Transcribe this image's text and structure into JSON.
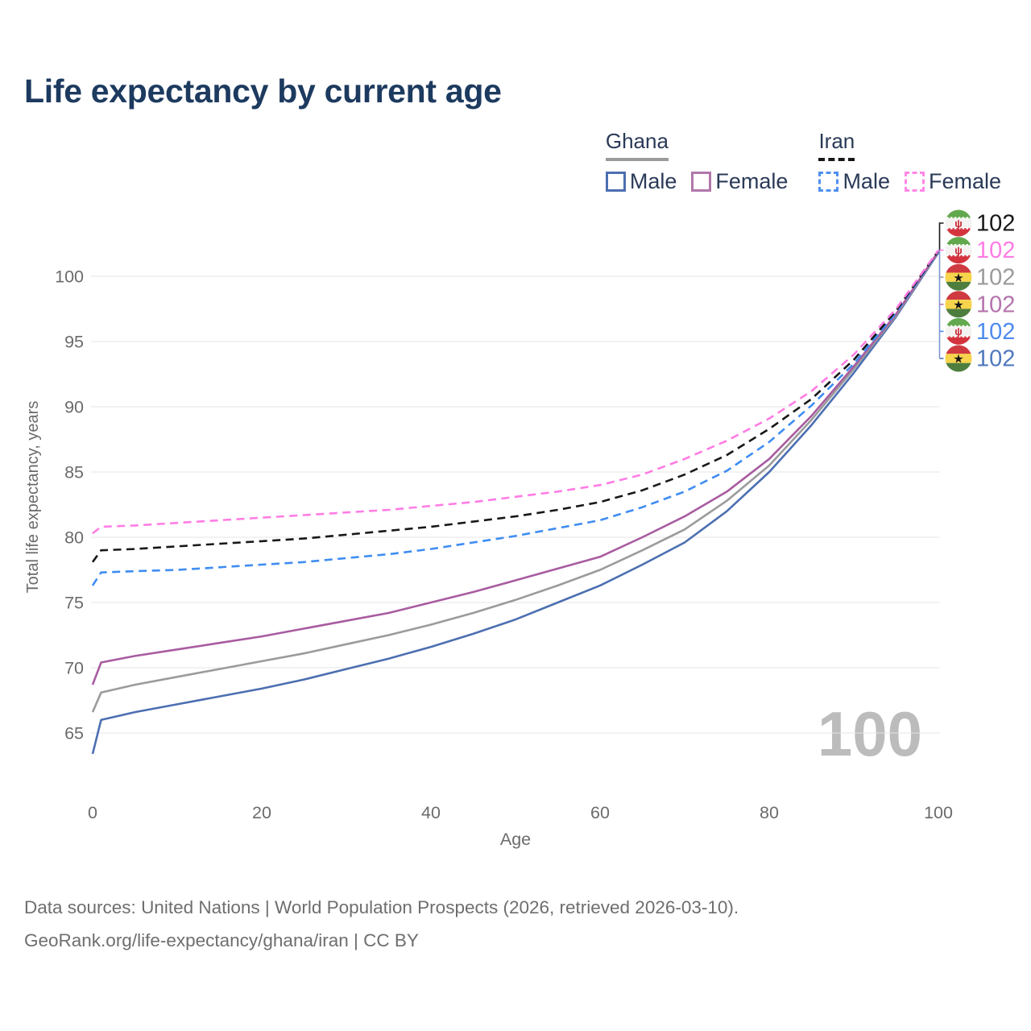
{
  "header": {
    "title": "Life expectancy by current age"
  },
  "legend": {
    "groups": [
      {
        "name": "Ghana",
        "line_style": "solid",
        "line_color": "#9b9b9b",
        "items": [
          {
            "label": "Male",
            "color": "#4c6fb1",
            "dashed": false
          },
          {
            "label": "Female",
            "color": "#b077ab",
            "dashed": false
          }
        ]
      },
      {
        "name": "Iran",
        "line_style": "dashed",
        "line_color": "#181818",
        "items": [
          {
            "label": "Male",
            "color": "#4f90f0",
            "dashed": true
          },
          {
            "label": "Female",
            "color": "#ff87e6",
            "dashed": true
          }
        ]
      }
    ]
  },
  "chart_data": {
    "type": "line",
    "title": "Life expectancy by current age",
    "xlabel": "Age",
    "ylabel": "Total life expectancy, years",
    "x_ticks": [
      0,
      20,
      40,
      60,
      80,
      100
    ],
    "y_ticks": [
      65,
      70,
      75,
      80,
      85,
      90,
      95,
      100
    ],
    "xlim": [
      0,
      100
    ],
    "ylim": [
      63,
      103
    ],
    "grid": "horizontal",
    "legend_position": "top-right",
    "watermark": "100",
    "ages": [
      0,
      1,
      5,
      10,
      15,
      20,
      25,
      30,
      35,
      40,
      45,
      50,
      55,
      60,
      65,
      70,
      75,
      80,
      85,
      90,
      95,
      100
    ],
    "series": [
      {
        "id": "ghana-male",
        "name": "Ghana Male",
        "country": "Ghana",
        "sex": "Male",
        "color": "#4c6fb1",
        "dashed": false,
        "values": [
          63.4,
          66.0,
          66.6,
          67.2,
          67.8,
          68.4,
          69.1,
          69.9,
          70.7,
          71.6,
          72.6,
          73.7,
          75.0,
          76.3,
          77.9,
          79.6,
          82.0,
          85.0,
          88.6,
          92.6,
          96.9,
          101.8
        ]
      },
      {
        "id": "ghana",
        "name": "Ghana",
        "country": "Ghana",
        "sex": "Both",
        "color": "#9b9b9b",
        "dashed": false,
        "values": [
          66.6,
          68.1,
          68.7,
          69.3,
          69.9,
          70.5,
          71.1,
          71.8,
          72.5,
          73.3,
          74.2,
          75.2,
          76.3,
          77.5,
          79.0,
          80.6,
          82.8,
          85.5,
          89.0,
          92.9,
          97.0,
          101.85
        ]
      },
      {
        "id": "ghana-female",
        "name": "Ghana Female",
        "country": "Ghana",
        "sex": "Female",
        "color": "#a85ca0",
        "dashed": false,
        "values": [
          68.7,
          70.4,
          70.9,
          71.4,
          71.9,
          72.4,
          73.0,
          73.6,
          74.2,
          75.0,
          75.8,
          76.7,
          77.6,
          78.5,
          80.0,
          81.6,
          83.5,
          86.0,
          89.3,
          93.1,
          97.1,
          101.9
        ]
      },
      {
        "id": "iran-male",
        "name": "Iran Male",
        "country": "Iran",
        "sex": "Male",
        "color": "#3f8df2",
        "dashed": true,
        "values": [
          76.3,
          77.3,
          77.4,
          77.5,
          77.7,
          77.9,
          78.1,
          78.4,
          78.7,
          79.1,
          79.6,
          80.1,
          80.7,
          81.3,
          82.3,
          83.5,
          85.1,
          87.3,
          90.1,
          93.3,
          97.2,
          101.9
        ]
      },
      {
        "id": "iran",
        "name": "Iran",
        "country": "Iran",
        "sex": "Both",
        "color": "#181818",
        "dashed": true,
        "values": [
          78.1,
          79.0,
          79.1,
          79.3,
          79.5,
          79.7,
          79.9,
          80.2,
          80.5,
          80.8,
          81.2,
          81.6,
          82.1,
          82.7,
          83.6,
          84.8,
          86.3,
          88.3,
          90.6,
          93.6,
          97.35,
          101.95
        ]
      },
      {
        "id": "iran-female",
        "name": "Iran Female",
        "country": "Iran",
        "sex": "Female",
        "color": "#ff7ce4",
        "dashed": true,
        "values": [
          80.3,
          80.8,
          80.9,
          81.1,
          81.3,
          81.5,
          81.7,
          81.9,
          82.1,
          82.4,
          82.7,
          83.1,
          83.5,
          84.0,
          84.8,
          86.0,
          87.4,
          89.1,
          91.2,
          94.0,
          97.5,
          102.0
        ]
      }
    ],
    "end_labels": [
      {
        "flag": "iran",
        "series": "Iran",
        "value": "102",
        "color": "#181818"
      },
      {
        "flag": "iran",
        "series": "Iran Female",
        "value": "102",
        "color": "#ff7ce4"
      },
      {
        "flag": "ghana",
        "series": "Ghana",
        "value": "102",
        "color": "#9b9b9b"
      },
      {
        "flag": "ghana",
        "series": "Ghana Female",
        "value": "102",
        "color": "#b573ae"
      },
      {
        "flag": "iran",
        "series": "Iran Male",
        "value": "102",
        "color": "#4e8bee"
      },
      {
        "flag": "ghana",
        "series": "Ghana Male",
        "value": "102",
        "color": "#5078be"
      }
    ]
  },
  "footer": {
    "line1": "Data sources: United Nations | World Population Prospects (2026, retrieved 2026-03-10).",
    "line2": "GeoRank.org/life-expectancy/ghana/iran | CC BY"
  }
}
